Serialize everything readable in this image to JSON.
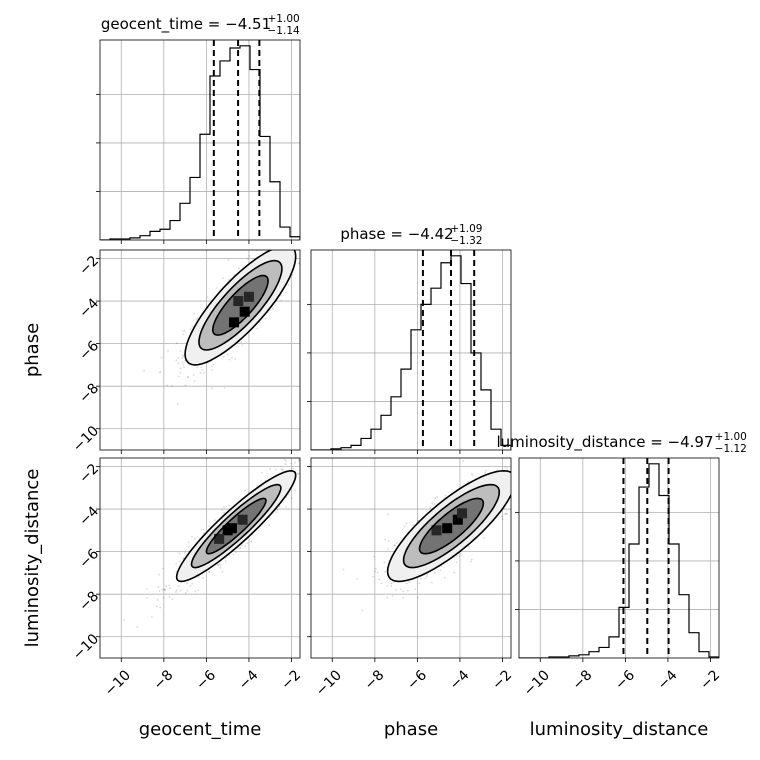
{
  "chart_data": {
    "type": "corner",
    "parameters": [
      "geocent_time",
      "phase",
      "luminosity_distance"
    ],
    "axis_range": [
      -11,
      -1.6
    ],
    "ticks": [
      -10,
      -8,
      -6,
      -4,
      -2
    ],
    "tick_labels": [
      "−10",
      "−8",
      "−6",
      "−4",
      "−2"
    ],
    "grid": true,
    "titles": [
      {
        "param": "geocent_time",
        "text": "geocent_time = −4.51",
        "plus": "+1.00",
        "minus": "−1.14"
      },
      {
        "param": "phase",
        "text": "phase = −4.42",
        "plus": "+1.09",
        "minus": "−1.32"
      },
      {
        "param": "luminosity_distance",
        "text": "luminosity_distance = −4.97",
        "plus": "+1.00",
        "minus": "−1.12"
      }
    ],
    "marginals": [
      {
        "param": "geocent_time",
        "quantiles": [
          -5.65,
          -4.51,
          -3.51
        ],
        "bins": [
          -11.0,
          -10.53,
          -10.06,
          -9.59,
          -9.12,
          -8.65,
          -8.18,
          -7.71,
          -7.24,
          -6.77,
          -6.3,
          -5.83,
          -5.36,
          -4.89,
          -4.42,
          -3.95,
          -3.48,
          -3.01,
          -2.54,
          -2.07,
          -1.6
        ],
        "counts": [
          0,
          1,
          1,
          2,
          4,
          8,
          10,
          18,
          34,
          58,
          98,
          152,
          166,
          178,
          180,
          158,
          96,
          54,
          12,
          3
        ]
      },
      {
        "param": "phase",
        "quantiles": [
          -5.74,
          -4.42,
          -3.33
        ],
        "bins": [
          -11.0,
          -10.53,
          -10.06,
          -9.59,
          -9.12,
          -8.65,
          -8.18,
          -7.71,
          -7.24,
          -6.77,
          -6.3,
          -5.83,
          -5.36,
          -4.89,
          -4.42,
          -3.95,
          -3.48,
          -3.01,
          -2.54,
          -2.07,
          -1.6
        ],
        "counts": [
          0,
          0,
          1,
          2,
          4,
          10,
          18,
          30,
          46,
          70,
          104,
          126,
          140,
          162,
          168,
          144,
          84,
          52,
          18,
          4
        ]
      },
      {
        "param": "luminosity_distance",
        "quantiles": [
          -6.09,
          -4.97,
          -3.97
        ],
        "bins": [
          -11.0,
          -10.53,
          -10.06,
          -9.59,
          -9.12,
          -8.65,
          -8.18,
          -7.71,
          -7.24,
          -6.77,
          -6.3,
          -5.83,
          -5.36,
          -4.89,
          -4.42,
          -3.95,
          -3.48,
          -3.01,
          -2.54,
          -2.07,
          -1.6
        ],
        "counts": [
          0,
          0,
          0,
          1,
          1,
          2,
          3,
          6,
          10,
          20,
          48,
          108,
          162,
          184,
          154,
          108,
          60,
          24,
          6,
          1
        ]
      }
    ],
    "pairs": [
      {
        "x": "geocent_time",
        "y": "phase",
        "center": [
          -4.4,
          -4.2
        ],
        "sigma": [
          1.3,
          1.4
        ],
        "rho": 0.82,
        "dense_cells": [
          [
            -4.2,
            -4.5
          ],
          [
            -4.7,
            -5.0
          ],
          [
            -4.0,
            -3.8
          ],
          [
            -4.5,
            -4.0
          ]
        ]
      },
      {
        "x": "geocent_time",
        "y": "luminosity_distance",
        "center": [
          -4.6,
          -4.8
        ],
        "sigma": [
          1.4,
          1.3
        ],
        "rho": 0.92,
        "dense_cells": [
          [
            -4.8,
            -4.9
          ],
          [
            -5.0,
            -5.0
          ],
          [
            -4.3,
            -4.5
          ],
          [
            -5.4,
            -5.4
          ]
        ]
      },
      {
        "x": "phase",
        "y": "luminosity_distance",
        "center": [
          -4.4,
          -4.8
        ],
        "sigma": [
          1.5,
          1.3
        ],
        "rho": 0.82,
        "dense_cells": [
          [
            -4.1,
            -4.5
          ],
          [
            -4.6,
            -4.9
          ],
          [
            -5.1,
            -5.0
          ],
          [
            -3.9,
            -4.2
          ]
        ]
      }
    ]
  }
}
